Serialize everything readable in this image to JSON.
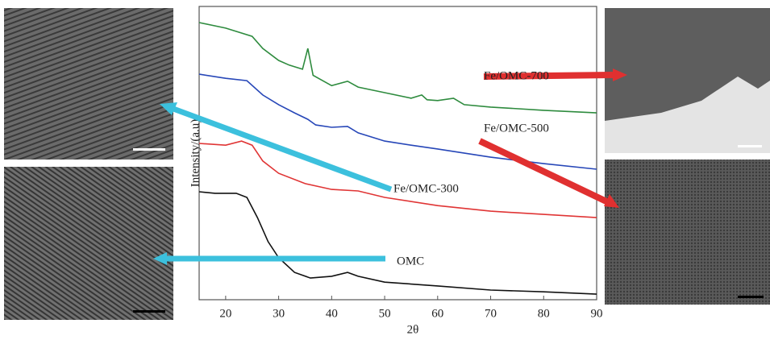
{
  "chart_data": {
    "type": "line",
    "x_label": "2θ",
    "y_label": "Intensity/(a.u)",
    "xlim": [
      15,
      90
    ],
    "xticks": [
      20,
      30,
      40,
      50,
      60,
      70,
      80,
      90
    ],
    "ylim": [
      0,
      100
    ],
    "series": [
      {
        "name": "Fe/OMC-700",
        "color": "#2e8b3e",
        "x": [
          15,
          20,
          25,
          27,
          30,
          32,
          34.5,
          35.5,
          36.5,
          40,
          43,
          45,
          50,
          55,
          57,
          58,
          60,
          63,
          65,
          70,
          80,
          90
        ],
        "values": [
          94.5,
          92.6,
          89.8,
          85.7,
          81.6,
          80,
          78.6,
          85.7,
          76.5,
          73,
          74.5,
          72.5,
          70.6,
          68.7,
          69.8,
          68.2,
          67.9,
          68.7,
          66.5,
          65.7,
          64.6,
          63.7
        ]
      },
      {
        "name": "Fe/OMC-500",
        "color": "#2747b8",
        "x": [
          15,
          20,
          24,
          27,
          30,
          33,
          35.5,
          37,
          40,
          43,
          45,
          50,
          55,
          60,
          70,
          80,
          90
        ],
        "values": [
          76.9,
          75.5,
          74.7,
          69.8,
          66.5,
          63.7,
          61.5,
          59.6,
          58.8,
          59.1,
          56.9,
          54.1,
          52.7,
          51.4,
          48.6,
          46.4,
          44.5
        ]
      },
      {
        "name": "Fe/OMC-300",
        "color": "#e03535",
        "x": [
          15,
          20,
          23,
          25,
          27,
          30,
          35,
          40,
          45,
          50,
          60,
          70,
          80,
          90
        ],
        "values": [
          53.3,
          52.7,
          54.1,
          52.7,
          47.3,
          43.1,
          39.6,
          37.6,
          37.1,
          34.9,
          32.1,
          30.2,
          29.1,
          28
        ]
      },
      {
        "name": "OMC",
        "color": "#111111",
        "x": [
          15,
          18,
          22,
          24,
          26,
          28,
          30,
          33,
          36,
          40,
          43,
          45,
          50,
          60,
          70,
          80,
          90
        ],
        "values": [
          36.8,
          36.3,
          36.3,
          34.9,
          28,
          19.8,
          14.3,
          9.3,
          7.4,
          8,
          9.3,
          8,
          6,
          4.7,
          3.3,
          2.7,
          1.9
        ]
      }
    ]
  }
}
